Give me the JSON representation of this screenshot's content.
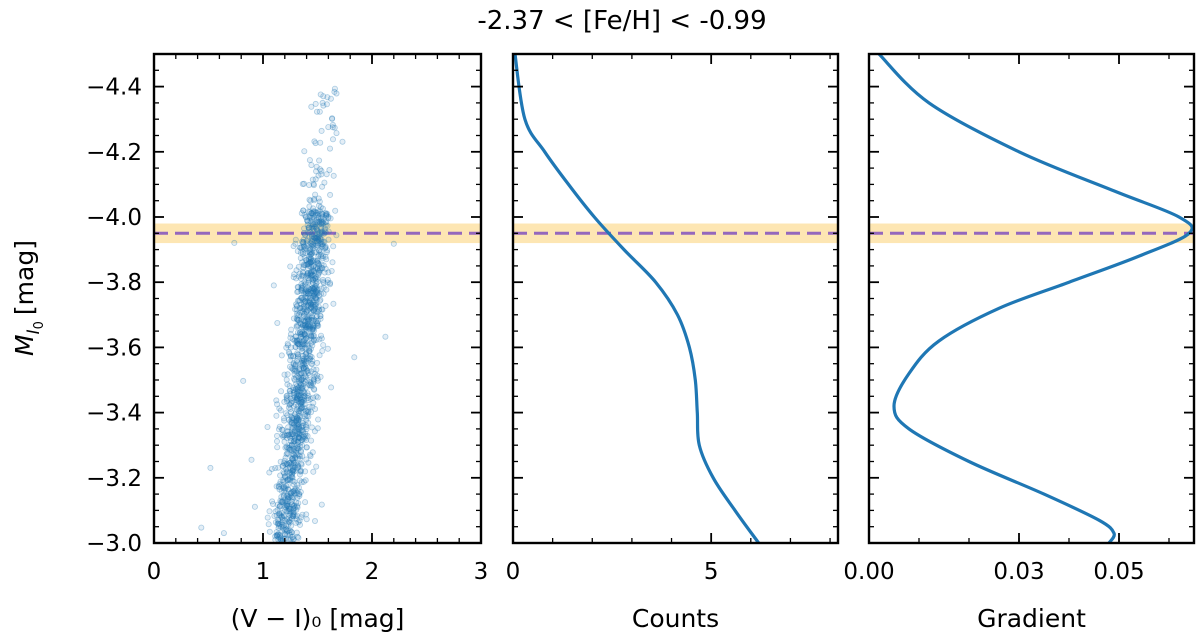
{
  "title": "-2.37 < [Fe/H] < -0.99",
  "y_axis": {
    "label_main": "M",
    "label_sub": "I",
    "label_subsub": "0",
    "label_unit": "[mag]",
    "ylim": [
      -3.0,
      -4.5
    ],
    "ticks": [
      -4.4,
      -4.2,
      -4.0,
      -3.8,
      -3.6,
      -3.4,
      -3.2,
      -3.0
    ],
    "tick_labels": [
      "−4.4",
      "−4.2",
      "−4.0",
      "−3.8",
      "−3.6",
      "−3.4",
      "−3.2",
      "−3.0"
    ]
  },
  "trgb": {
    "value": -3.95,
    "band": [
      -3.92,
      -3.98
    ],
    "band_color": "#fde2a6",
    "line_color": "#9467bd"
  },
  "chart_data": [
    {
      "type": "scatter",
      "name": "cmd",
      "xlabel": "(V − I)₀ [mag]",
      "xlim": [
        0,
        3
      ],
      "x_ticks": [
        0,
        1,
        2,
        3
      ],
      "x_tick_labels": [
        "0",
        "1",
        "2",
        "3"
      ],
      "point_color": "#1f77b4",
      "n_points": 1400,
      "distribution_note": "red giant branch: (V-I)0 ~1.2 at M=-3.0 rising to ~1.5 at M=-4.0, sparse above -4.0 up to -4.4"
    },
    {
      "type": "line",
      "name": "counts",
      "xlabel": "Counts",
      "xlim": [
        0,
        8.2
      ],
      "x_ticks": [
        0,
        5
      ],
      "x_tick_labels": [
        "0",
        "5"
      ],
      "line_color": "#1f77b4",
      "x": [
        0.05,
        0.3,
        0.8,
        1.4,
        2.05,
        2.8,
        3.6,
        4.15,
        4.45,
        4.6,
        4.65,
        4.7,
        5.05,
        5.6,
        6.2
      ],
      "y": [
        -4.5,
        -4.3,
        -4.2,
        -4.1,
        -4.0,
        -3.9,
        -3.8,
        -3.7,
        -3.6,
        -3.5,
        -3.4,
        -3.3,
        -3.2,
        -3.1,
        -3.0
      ]
    },
    {
      "type": "line",
      "name": "gradient",
      "xlabel": "Gradient",
      "xlim": [
        0.0,
        0.065
      ],
      "x_ticks": [
        0.0,
        0.03,
        0.05
      ],
      "x_tick_labels": [
        "0.00",
        "0.03",
        "0.05"
      ],
      "line_color": "#1f77b4",
      "x": [
        0.002,
        0.012,
        0.03,
        0.049,
        0.062,
        0.064,
        0.054,
        0.04,
        0.026,
        0.014,
        0.008,
        0.005,
        0.008,
        0.02,
        0.035,
        0.046,
        0.049,
        0.048
      ],
      "y": [
        -4.5,
        -4.35,
        -4.2,
        -4.08,
        -4.0,
        -3.95,
        -3.88,
        -3.8,
        -3.72,
        -3.62,
        -3.52,
        -3.42,
        -3.35,
        -3.25,
        -3.15,
        -3.07,
        -3.03,
        -3.0
      ]
    }
  ]
}
